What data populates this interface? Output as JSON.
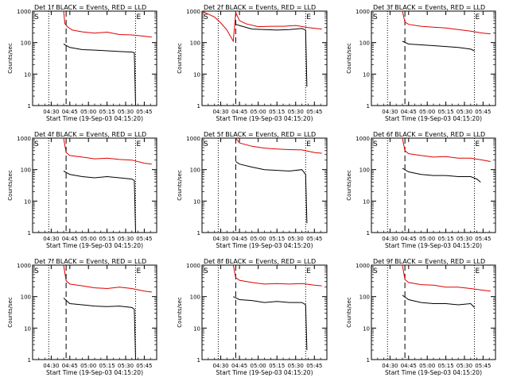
{
  "figure": {
    "xlabel": "Start Time (19-Sep-03 04:15:20)",
    "ylabel": "Counts/sec",
    "x_ticks": [
      "04:30",
      "04:45",
      "05:00",
      "05:15",
      "05:30",
      "05:45"
    ],
    "y_ticks": [
      "1",
      "10",
      "100",
      "1000"
    ],
    "marker_S": "S",
    "marker_E": "E",
    "colors": {
      "events": "#000000",
      "lld": "#e00000",
      "axes": "#000000"
    }
  },
  "chart_data": [
    {
      "type": "line",
      "title": "Det 1f BLACK = Events, RED = LLD",
      "xlabel": "Start Time (19-Sep-03 04:15:20)",
      "ylabel": "Counts/sec",
      "x_unit": "minutes after 04:15:20",
      "xlim": [
        0,
        100
      ],
      "ylim": [
        1,
        1000
      ],
      "yscale": "log",
      "vlines": {
        "dotted": [
          13,
          83
        ],
        "dashed": [
          27
        ]
      },
      "series": [
        {
          "name": "Events",
          "color": "#000000",
          "points": [
            [
              25,
              90
            ],
            [
              30,
              70
            ],
            [
              40,
              60
            ],
            [
              50,
              58
            ],
            [
              60,
              55
            ],
            [
              70,
              52
            ],
            [
              80,
              50
            ],
            [
              82,
              48
            ],
            [
              83,
              1
            ]
          ]
        },
        {
          "name": "LLD",
          "color": "#e00000",
          "points": [
            [
              25,
              1000
            ],
            [
              26,
              400
            ],
            [
              28,
              320
            ],
            [
              32,
              250
            ],
            [
              40,
              220
            ],
            [
              50,
              200
            ],
            [
              60,
              215
            ],
            [
              70,
              180
            ],
            [
              80,
              175
            ],
            [
              90,
              160
            ],
            [
              96,
              150
            ]
          ]
        }
      ]
    },
    {
      "type": "line",
      "title": "Det 2f BLACK = Events, RED = LLD",
      "xlabel": "Start Time (19-Sep-03 04:15:20)",
      "ylabel": "Counts/sec",
      "x_unit": "minutes after 04:15:20",
      "xlim": [
        0,
        100
      ],
      "ylim": [
        1,
        1000
      ],
      "yscale": "log",
      "vlines": {
        "dotted": [
          13,
          83
        ],
        "dashed": [
          27
        ]
      },
      "series": [
        {
          "name": "Events",
          "color": "#000000",
          "points": [
            [
              27,
              380
            ],
            [
              30,
              350
            ],
            [
              40,
              270
            ],
            [
              50,
              260
            ],
            [
              60,
              250
            ],
            [
              70,
              260
            ],
            [
              80,
              280
            ],
            [
              83,
              250
            ],
            [
              84,
              4
            ]
          ]
        },
        {
          "name": "LLD",
          "color": "#e00000",
          "points": [
            [
              0,
              1000
            ],
            [
              5,
              800
            ],
            [
              10,
              650
            ],
            [
              15,
              420
            ],
            [
              20,
              250
            ],
            [
              25,
              110
            ],
            [
              27,
              900
            ],
            [
              30,
              500
            ],
            [
              35,
              400
            ],
            [
              45,
              320
            ],
            [
              55,
              330
            ],
            [
              65,
              330
            ],
            [
              75,
              350
            ],
            [
              85,
              300
            ],
            [
              96,
              270
            ]
          ]
        }
      ]
    },
    {
      "type": "line",
      "title": "Det 3f BLACK = Events, RED = LLD",
      "xlabel": "Start Time (19-Sep-03 04:15:20)",
      "ylabel": "Counts/sec",
      "x_unit": "minutes after 04:15:20",
      "xlim": [
        0,
        100
      ],
      "ylim": [
        1,
        1000
      ],
      "yscale": "log",
      "vlines": {
        "dotted": [
          13,
          83
        ],
        "dashed": [
          27
        ]
      },
      "series": [
        {
          "name": "Events",
          "color": "#000000",
          "points": [
            [
              25,
              110
            ],
            [
              30,
              90
            ],
            [
              40,
              85
            ],
            [
              50,
              80
            ],
            [
              60,
              75
            ],
            [
              70,
              70
            ],
            [
              80,
              62
            ],
            [
              83,
              55
            ]
          ]
        },
        {
          "name": "LLD",
          "color": "#e00000",
          "points": [
            [
              25,
              1000
            ],
            [
              27,
              450
            ],
            [
              30,
              380
            ],
            [
              40,
              330
            ],
            [
              50,
              310
            ],
            [
              60,
              290
            ],
            [
              70,
              260
            ],
            [
              80,
              230
            ],
            [
              90,
              200
            ],
            [
              96,
              190
            ]
          ]
        }
      ]
    },
    {
      "type": "line",
      "title": "Det 4f BLACK = Events, RED = LLD",
      "xlabel": "Start Time (19-Sep-03 04:15:20)",
      "ylabel": "Counts/sec",
      "x_unit": "minutes after 04:15:20",
      "xlim": [
        0,
        100
      ],
      "ylim": [
        1,
        1000
      ],
      "yscale": "log",
      "vlines": {
        "dotted": [
          13,
          83
        ],
        "dashed": [
          27
        ]
      },
      "series": [
        {
          "name": "Events",
          "color": "#000000",
          "points": [
            [
              25,
              90
            ],
            [
              30,
              70
            ],
            [
              40,
              60
            ],
            [
              50,
              55
            ],
            [
              60,
              60
            ],
            [
              70,
              55
            ],
            [
              80,
              50
            ],
            [
              82,
              45
            ],
            [
              83,
              1
            ]
          ]
        },
        {
          "name": "LLD",
          "color": "#e00000",
          "points": [
            [
              25,
              1000
            ],
            [
              27,
              350
            ],
            [
              30,
              280
            ],
            [
              40,
              250
            ],
            [
              50,
              220
            ],
            [
              60,
              230
            ],
            [
              70,
              210
            ],
            [
              80,
              200
            ],
            [
              90,
              160
            ],
            [
              96,
              150
            ]
          ]
        }
      ]
    },
    {
      "type": "line",
      "title": "Det 5f BLACK = Events, RED = LLD",
      "xlabel": "Start Time (19-Sep-03 04:15:20)",
      "ylabel": "Counts/sec",
      "x_unit": "minutes after 04:15:20",
      "xlim": [
        0,
        100
      ],
      "ylim": [
        1,
        1000
      ],
      "yscale": "log",
      "vlines": {
        "dotted": [
          13,
          83
        ],
        "dashed": [
          27
        ]
      },
      "series": [
        {
          "name": "Events",
          "color": "#000000",
          "points": [
            [
              27,
              180
            ],
            [
              30,
              150
            ],
            [
              40,
              120
            ],
            [
              50,
              100
            ],
            [
              60,
              95
            ],
            [
              70,
              90
            ],
            [
              80,
              100
            ],
            [
              83,
              70
            ],
            [
              84,
              2
            ]
          ]
        },
        {
          "name": "LLD",
          "color": "#e00000",
          "points": [
            [
              27,
              1000
            ],
            [
              30,
              700
            ],
            [
              40,
              550
            ],
            [
              50,
              480
            ],
            [
              60,
              450
            ],
            [
              70,
              430
            ],
            [
              80,
              420
            ],
            [
              90,
              350
            ],
            [
              96,
              330
            ]
          ]
        }
      ]
    },
    {
      "type": "line",
      "title": "Det 6f BLACK = Events, RED = LLD",
      "xlabel": "Start Time (19-Sep-03 04:15:20)",
      "ylabel": "Counts/sec",
      "x_unit": "minutes after 04:15:20",
      "xlim": [
        0,
        100
      ],
      "ylim": [
        1,
        1000
      ],
      "yscale": "log",
      "vlines": {
        "dotted": [
          13,
          83
        ],
        "dashed": [
          27
        ]
      },
      "series": [
        {
          "name": "Events",
          "color": "#000000",
          "points": [
            [
              25,
              110
            ],
            [
              30,
              85
            ],
            [
              40,
              70
            ],
            [
              50,
              65
            ],
            [
              60,
              65
            ],
            [
              70,
              60
            ],
            [
              80,
              60
            ],
            [
              85,
              50
            ],
            [
              88,
              40
            ]
          ]
        },
        {
          "name": "LLD",
          "color": "#e00000",
          "points": [
            [
              25,
              1000
            ],
            [
              27,
              400
            ],
            [
              30,
              320
            ],
            [
              40,
              280
            ],
            [
              50,
              250
            ],
            [
              60,
              260
            ],
            [
              70,
              230
            ],
            [
              80,
              230
            ],
            [
              90,
              200
            ],
            [
              96,
              180
            ]
          ]
        }
      ]
    },
    {
      "type": "line",
      "title": "Det 7f BLACK = Events, RED = LLD",
      "xlabel": "Start Time (19-Sep-03 04:15:20)",
      "ylabel": "Counts/sec",
      "x_unit": "minutes after 04:15:20",
      "xlim": [
        0,
        100
      ],
      "ylim": [
        1,
        1000
      ],
      "yscale": "log",
      "vlines": {
        "dotted": [
          13,
          83
        ],
        "dashed": [
          27
        ]
      },
      "series": [
        {
          "name": "Events",
          "color": "#000000",
          "points": [
            [
              25,
              90
            ],
            [
              30,
              60
            ],
            [
              40,
              55
            ],
            [
              50,
              50
            ],
            [
              60,
              48
            ],
            [
              70,
              50
            ],
            [
              80,
              45
            ],
            [
              82,
              40
            ],
            [
              83,
              1
            ]
          ]
        },
        {
          "name": "LLD",
          "color": "#e00000",
          "points": [
            [
              25,
              1000
            ],
            [
              27,
              320
            ],
            [
              30,
              250
            ],
            [
              40,
              220
            ],
            [
              50,
              190
            ],
            [
              60,
              180
            ],
            [
              70,
              200
            ],
            [
              80,
              180
            ],
            [
              90,
              150
            ],
            [
              96,
              140
            ]
          ]
        }
      ]
    },
    {
      "type": "line",
      "title": "Det 8f BLACK = Events, RED = LLD",
      "xlabel": "Start Time (19-Sep-03 04:15:20)",
      "ylabel": "Counts/sec",
      "x_unit": "minutes after 04:15:20",
      "xlim": [
        0,
        100
      ],
      "ylim": [
        1,
        1000
      ],
      "yscale": "log",
      "vlines": {
        "dotted": [
          13,
          83
        ],
        "dashed": [
          27
        ]
      },
      "series": [
        {
          "name": "Events",
          "color": "#000000",
          "points": [
            [
              25,
              100
            ],
            [
              30,
              80
            ],
            [
              40,
              75
            ],
            [
              50,
              65
            ],
            [
              60,
              70
            ],
            [
              70,
              65
            ],
            [
              80,
              65
            ],
            [
              83,
              55
            ],
            [
              84,
              2
            ]
          ]
        },
        {
          "name": "LLD",
          "color": "#e00000",
          "points": [
            [
              25,
              1000
            ],
            [
              27,
              400
            ],
            [
              30,
              330
            ],
            [
              40,
              280
            ],
            [
              50,
              250
            ],
            [
              60,
              260
            ],
            [
              70,
              250
            ],
            [
              80,
              260
            ],
            [
              90,
              230
            ],
            [
              96,
              220
            ]
          ]
        }
      ]
    },
    {
      "type": "line",
      "title": "Det 9f BLACK = Events, RED = LLD",
      "xlabel": "Start Time (19-Sep-03 04:15:20)",
      "ylabel": "Counts/sec",
      "x_unit": "minutes after 04:15:20",
      "xlim": [
        0,
        100
      ],
      "ylim": [
        1,
        1000
      ],
      "yscale": "log",
      "vlines": {
        "dotted": [
          13,
          83
        ],
        "dashed": [
          27
        ]
      },
      "series": [
        {
          "name": "Events",
          "color": "#000000",
          "points": [
            [
              25,
              110
            ],
            [
              30,
              80
            ],
            [
              40,
              65
            ],
            [
              50,
              60
            ],
            [
              60,
              60
            ],
            [
              70,
              55
            ],
            [
              80,
              60
            ],
            [
              83,
              45
            ]
          ]
        },
        {
          "name": "LLD",
          "color": "#e00000",
          "points": [
            [
              25,
              1000
            ],
            [
              27,
              350
            ],
            [
              30,
              280
            ],
            [
              40,
              240
            ],
            [
              50,
              230
            ],
            [
              60,
              200
            ],
            [
              70,
              200
            ],
            [
              80,
              180
            ],
            [
              90,
              160
            ],
            [
              96,
              150
            ]
          ]
        }
      ]
    }
  ]
}
